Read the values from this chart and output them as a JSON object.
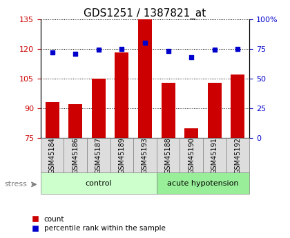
{
  "title": "GDS1251 / 1387821_at",
  "samples": [
    "GSM45184",
    "GSM45186",
    "GSM45187",
    "GSM45189",
    "GSM45193",
    "GSM45188",
    "GSM45190",
    "GSM45191",
    "GSM45192"
  ],
  "count_values": [
    93,
    92,
    105,
    118,
    135,
    103,
    80,
    103,
    107
  ],
  "percentile_values": [
    72,
    71,
    74,
    75,
    80,
    73,
    68,
    74,
    75
  ],
  "groups": [
    {
      "label": "control",
      "start": 0,
      "end": 5,
      "color": "#ccffcc"
    },
    {
      "label": "acute hypotension",
      "start": 5,
      "end": 9,
      "color": "#99ee99"
    }
  ],
  "ylim_left": [
    75,
    135
  ],
  "ylim_right": [
    0,
    100
  ],
  "yticks_left": [
    75,
    90,
    105,
    120,
    135
  ],
  "yticks_right": [
    0,
    25,
    50,
    75,
    100
  ],
  "bar_color": "#cc0000",
  "dot_color": "#0000cc",
  "bar_width": 0.6,
  "left_tick_color": "#cc0000",
  "right_tick_color": "#0000cc",
  "stress_label": "stress",
  "legend_count_label": "count",
  "legend_percentile_label": "percentile rank within the sample",
  "tick_label_bg": "#dddddd"
}
